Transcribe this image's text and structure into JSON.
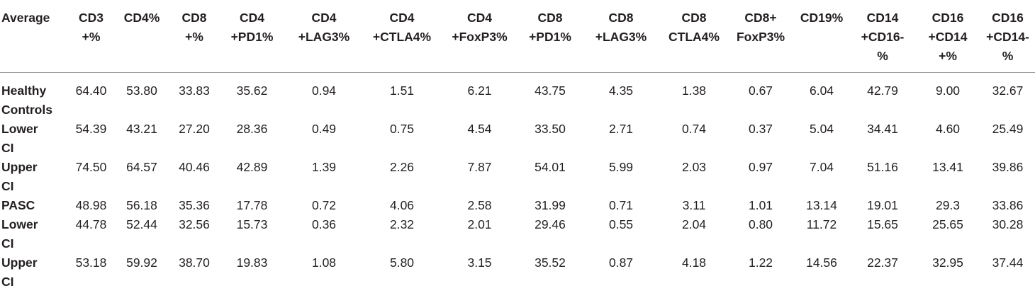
{
  "table": {
    "corner_header": "Average",
    "columns": [
      [
        "CD3",
        "+%"
      ],
      [
        "CD4%"
      ],
      [
        "CD8",
        "+%"
      ],
      [
        "CD4",
        "+PD1%"
      ],
      [
        "CD4",
        "+LAG3%"
      ],
      [
        "CD4",
        "+CTLA4%"
      ],
      [
        "CD4",
        "+FoxP3%"
      ],
      [
        "CD8",
        "+PD1%"
      ],
      [
        "CD8",
        "+LAG3%"
      ],
      [
        "CD8",
        "CTLA4%"
      ],
      [
        "CD8+",
        "FoxP3%"
      ],
      [
        "CD19%"
      ],
      [
        "CD14",
        "+CD16-",
        "%"
      ],
      [
        "CD16",
        "+CD14",
        "+%"
      ],
      [
        "CD16",
        "+CD14-",
        "%"
      ]
    ],
    "rows": [
      {
        "label": [
          "Healthy",
          "Controls"
        ],
        "values": [
          "64.40",
          "53.80",
          "33.83",
          "35.62",
          "0.94",
          "1.51",
          "6.21",
          "43.75",
          "4.35",
          "1.38",
          "0.67",
          "6.04",
          "42.79",
          "9.00",
          "32.67"
        ]
      },
      {
        "label": [
          "Lower",
          "CI"
        ],
        "values": [
          "54.39",
          "43.21",
          "27.20",
          "28.36",
          "0.49",
          "0.75",
          "4.54",
          "33.50",
          "2.71",
          "0.74",
          "0.37",
          "5.04",
          "34.41",
          "4.60",
          "25.49"
        ]
      },
      {
        "label": [
          "Upper",
          "CI"
        ],
        "values": [
          "74.50",
          "64.57",
          "40.46",
          "42.89",
          "1.39",
          "2.26",
          "7.87",
          "54.01",
          "5.99",
          "2.03",
          "0.97",
          "7.04",
          "51.16",
          "13.41",
          "39.86"
        ]
      },
      {
        "label": [
          "PASC"
        ],
        "values": [
          "48.98",
          "56.18",
          "35.36",
          "17.78",
          "0.72",
          "4.06",
          "2.58",
          "31.99",
          "0.71",
          "3.11",
          "1.01",
          "13.14",
          "19.01",
          "29.3",
          "33.86"
        ]
      },
      {
        "label": [
          "Lower",
          "CI"
        ],
        "values": [
          "44.78",
          "52.44",
          "32.56",
          "15.73",
          "0.36",
          "2.32",
          "2.01",
          "29.46",
          "0.55",
          "2.04",
          "0.80",
          "11.72",
          "15.65",
          "25.65",
          "30.28"
        ]
      },
      {
        "label": [
          "Upper",
          "CI"
        ],
        "values": [
          "53.18",
          "59.92",
          "38.70",
          "19.83",
          "1.08",
          "5.80",
          "3.15",
          "35.52",
          "0.87",
          "4.18",
          "1.22",
          "14.56",
          "22.37",
          "32.95",
          "37.44"
        ]
      }
    ]
  }
}
